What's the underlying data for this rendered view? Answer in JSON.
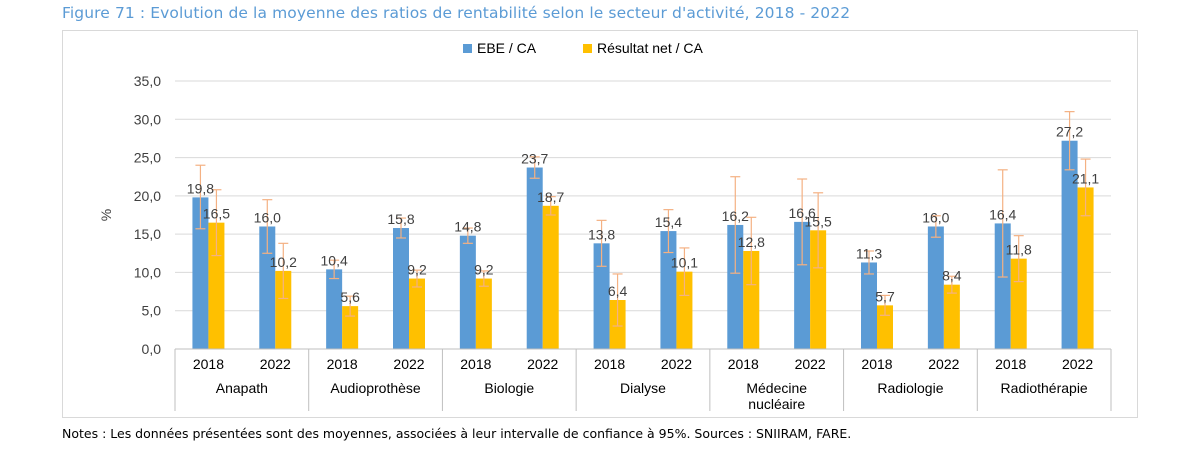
{
  "figure_title": "Figure 71 : Evolution de la moyenne des ratios de rentabilité selon le secteur d'activité, 2018 - 2022",
  "notes": "Notes : Les données présentées sont des moyennes, associées à leur intervalle de confiance à 95%. Sources : SNIIRAM, FARE.",
  "colors": {
    "ebe": "#5b9bd5",
    "rn": "#ffc000",
    "error": "#f4b183",
    "grid": "#d9d9d9",
    "axis": "#bfbfbf",
    "title": "#5b9bd5"
  },
  "chart_data": {
    "type": "bar",
    "title": "Evolution de la moyenne des ratios de rentabilité selon le secteur d'activité, 2018 - 2022",
    "ylabel": "%",
    "xlabel": "",
    "ylim": [
      0,
      35
    ],
    "yticks": [
      "0,0",
      "5,0",
      "10,0",
      "15,0",
      "20,0",
      "25,0",
      "30,0",
      "35,0"
    ],
    "grid": true,
    "legend_position": "top-center",
    "groups": [
      {
        "sector": "Anapath",
        "years": [
          "2018",
          "2022"
        ]
      },
      {
        "sector": "Audioprothèse",
        "years": [
          "2018",
          "2022"
        ]
      },
      {
        "sector": "Biologie",
        "years": [
          "2018",
          "2022"
        ]
      },
      {
        "sector": "Dialyse",
        "years": [
          "2018",
          "2022"
        ]
      },
      {
        "sector": "Médecine nucléaire",
        "sector_lines": [
          "Médecine",
          "nucléaire"
        ],
        "years": [
          "2018",
          "2022"
        ]
      },
      {
        "sector": "Radiologie",
        "years": [
          "2018",
          "2022"
        ]
      },
      {
        "sector": "Radiothérapie",
        "years": [
          "2018",
          "2022"
        ]
      }
    ],
    "series": [
      {
        "name": "EBE / CA",
        "values": [
          19.8,
          16.0,
          10.4,
          15.8,
          14.8,
          23.7,
          13.8,
          15.4,
          16.2,
          16.6,
          11.3,
          16.0,
          16.4,
          27.2
        ],
        "labels": [
          "19,8",
          "16,0",
          "10,4",
          "15,8",
          "14,8",
          "23,7",
          "13,8",
          "15,4",
          "16,2",
          "16,6",
          "11,3",
          "16,0",
          "16,4",
          "27,2"
        ],
        "ci_low": [
          15.7,
          12.5,
          9.2,
          14.5,
          13.8,
          22.3,
          10.8,
          12.6,
          9.9,
          11.0,
          9.8,
          14.6,
          9.4,
          23.4
        ],
        "ci_high": [
          24.0,
          19.5,
          11.6,
          17.1,
          15.8,
          25.1,
          16.8,
          18.2,
          22.5,
          22.2,
          12.8,
          17.4,
          23.4,
          31.0
        ]
      },
      {
        "name": "Résultat net / CA",
        "values": [
          16.5,
          10.2,
          5.6,
          9.2,
          9.2,
          18.7,
          6.4,
          10.1,
          12.8,
          15.5,
          5.7,
          8.4,
          11.8,
          21.1
        ],
        "labels": [
          "16,5",
          "10,2",
          "5,6",
          "9,2",
          "9,2",
          "18,7",
          "6,4",
          "10,1",
          "12,8",
          "15,5",
          "5,7",
          "8,4",
          "11,8",
          "21,1"
        ],
        "ci_low": [
          12.2,
          6.6,
          4.3,
          8.1,
          8.2,
          17.5,
          3.0,
          7.0,
          8.4,
          10.6,
          4.4,
          7.3,
          8.8,
          17.4
        ],
        "ci_high": [
          20.8,
          13.8,
          6.9,
          10.3,
          10.2,
          19.9,
          9.8,
          13.2,
          17.2,
          20.4,
          7.0,
          9.5,
          14.8,
          24.8
        ]
      }
    ]
  }
}
